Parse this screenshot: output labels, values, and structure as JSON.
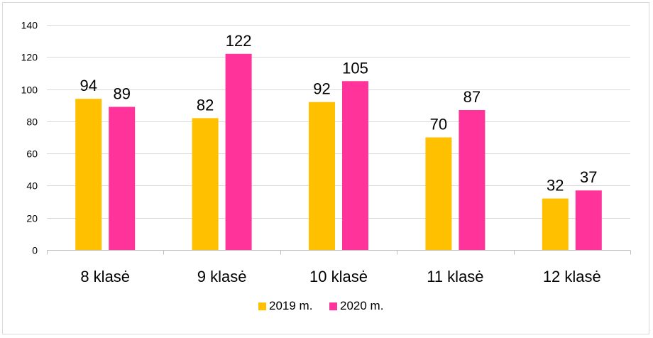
{
  "chart_data": {
    "type": "bar",
    "title": "",
    "xlabel": "",
    "ylabel": "",
    "categories": [
      "8 klasė",
      "9 klasė",
      "10 klasė",
      "11 klasė",
      "12 klasė"
    ],
    "series": [
      {
        "name": "2019 m.",
        "color": "#ffc000",
        "values": [
          94,
          82,
          92,
          70,
          32
        ]
      },
      {
        "name": "2020 m.",
        "color": "#ff3399",
        "values": [
          89,
          122,
          105,
          87,
          37
        ]
      }
    ],
    "ylim": [
      0,
      140
    ],
    "yticks": [
      0,
      20,
      40,
      60,
      80,
      100,
      120,
      140
    ],
    "grid": true,
    "legend": "bottom",
    "data_labels": true
  }
}
